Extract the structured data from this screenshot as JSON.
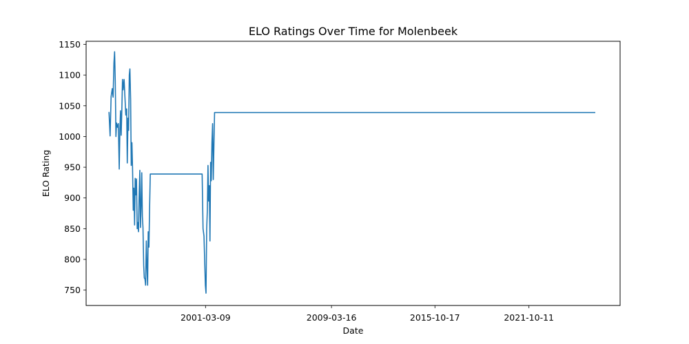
{
  "chart_data": {
    "type": "line",
    "title": "ELO Ratings Over Time for Molenbeek",
    "xlabel": "Date",
    "ylabel": "ELO Rating",
    "x_type": "date",
    "xlim": [
      "1993-08-01",
      "2027-08-01"
    ],
    "ylim": [
      725,
      1155
    ],
    "x_ticks": [
      "2001-03-09",
      "2009-03-16",
      "2015-10-17",
      "2021-10-11"
    ],
    "y_ticks": [
      750,
      800,
      850,
      900,
      950,
      1000,
      1050,
      1100,
      1150
    ],
    "grid": false,
    "line_color": "#1f77b4",
    "series": [
      {
        "name": "",
        "points": [
          [
            "1995-01-15",
            1040
          ],
          [
            "1995-02-10",
            1001
          ],
          [
            "1995-03-05",
            1065
          ],
          [
            "1995-04-01",
            1078
          ],
          [
            "1995-04-20",
            1064
          ],
          [
            "1995-05-10",
            1120
          ],
          [
            "1995-05-25",
            1138
          ],
          [
            "1995-06-10",
            1090
          ],
          [
            "1995-06-25",
            1000
          ],
          [
            "1995-07-10",
            1022
          ],
          [
            "1995-08-01",
            1015
          ],
          [
            "1995-08-20",
            1021
          ],
          [
            "1995-09-10",
            947
          ],
          [
            "1995-09-25",
            1010
          ],
          [
            "1995-10-10",
            1042
          ],
          [
            "1995-10-25",
            1002
          ],
          [
            "1995-11-10",
            1044
          ],
          [
            "1995-11-25",
            1093
          ],
          [
            "1995-12-10",
            1076
          ],
          [
            "1996-01-01",
            1093
          ],
          [
            "1996-01-20",
            1065
          ],
          [
            "1996-02-10",
            1035
          ],
          [
            "1996-03-01",
            1045
          ],
          [
            "1996-03-15",
            957
          ],
          [
            "1996-04-01",
            1030
          ],
          [
            "1996-04-15",
            1010
          ],
          [
            "1996-05-01",
            1100
          ],
          [
            "1996-05-15",
            1110
          ],
          [
            "1996-06-01",
            1060
          ],
          [
            "1996-06-15",
            953
          ],
          [
            "1996-07-01",
            990
          ],
          [
            "1996-07-15",
            950
          ],
          [
            "1996-08-01",
            880
          ],
          [
            "1996-08-15",
            916
          ],
          [
            "1996-09-01",
            856
          ],
          [
            "1996-09-15",
            932
          ],
          [
            "1996-10-01",
            905
          ],
          [
            "1996-10-15",
            931
          ],
          [
            "1996-11-01",
            850
          ],
          [
            "1996-11-15",
            860
          ],
          [
            "1996-12-01",
            845
          ],
          [
            "1996-12-15",
            900
          ],
          [
            "1997-01-01",
            945
          ],
          [
            "1997-01-15",
            852
          ],
          [
            "1997-02-01",
            890
          ],
          [
            "1997-02-15",
            941
          ],
          [
            "1997-03-01",
            870
          ],
          [
            "1997-03-15",
            852
          ],
          [
            "1997-04-01",
            790
          ],
          [
            "1997-04-15",
            770
          ],
          [
            "1997-05-01",
            768
          ],
          [
            "1997-05-15",
            758
          ],
          [
            "1997-06-01",
            830
          ],
          [
            "1997-06-15",
            790
          ],
          [
            "1997-07-01",
            758
          ],
          [
            "1997-07-15",
            845
          ],
          [
            "1997-08-01",
            820
          ],
          [
            "1997-08-15",
            880
          ],
          [
            "1997-09-01",
            939
          ],
          [
            "2000-12-20",
            939
          ],
          [
            "2001-01-10",
            850
          ],
          [
            "2001-02-01",
            838
          ],
          [
            "2001-02-20",
            790
          ],
          [
            "2001-03-05",
            758
          ],
          [
            "2001-03-20",
            745
          ],
          [
            "2001-04-05",
            850
          ],
          [
            "2001-04-20",
            880
          ],
          [
            "2001-05-05",
            953
          ],
          [
            "2001-05-20",
            895
          ],
          [
            "2001-06-05",
            920
          ],
          [
            "2001-06-20",
            830
          ],
          [
            "2001-07-05",
            958
          ],
          [
            "2001-07-20",
            928
          ],
          [
            "2001-08-05",
            990
          ],
          [
            "2001-08-20",
            1021
          ],
          [
            "2001-09-05",
            930
          ],
          [
            "2001-09-20",
            985
          ],
          [
            "2001-10-05",
            1039
          ],
          [
            "2026-01-01",
            1039
          ]
        ]
      }
    ]
  }
}
